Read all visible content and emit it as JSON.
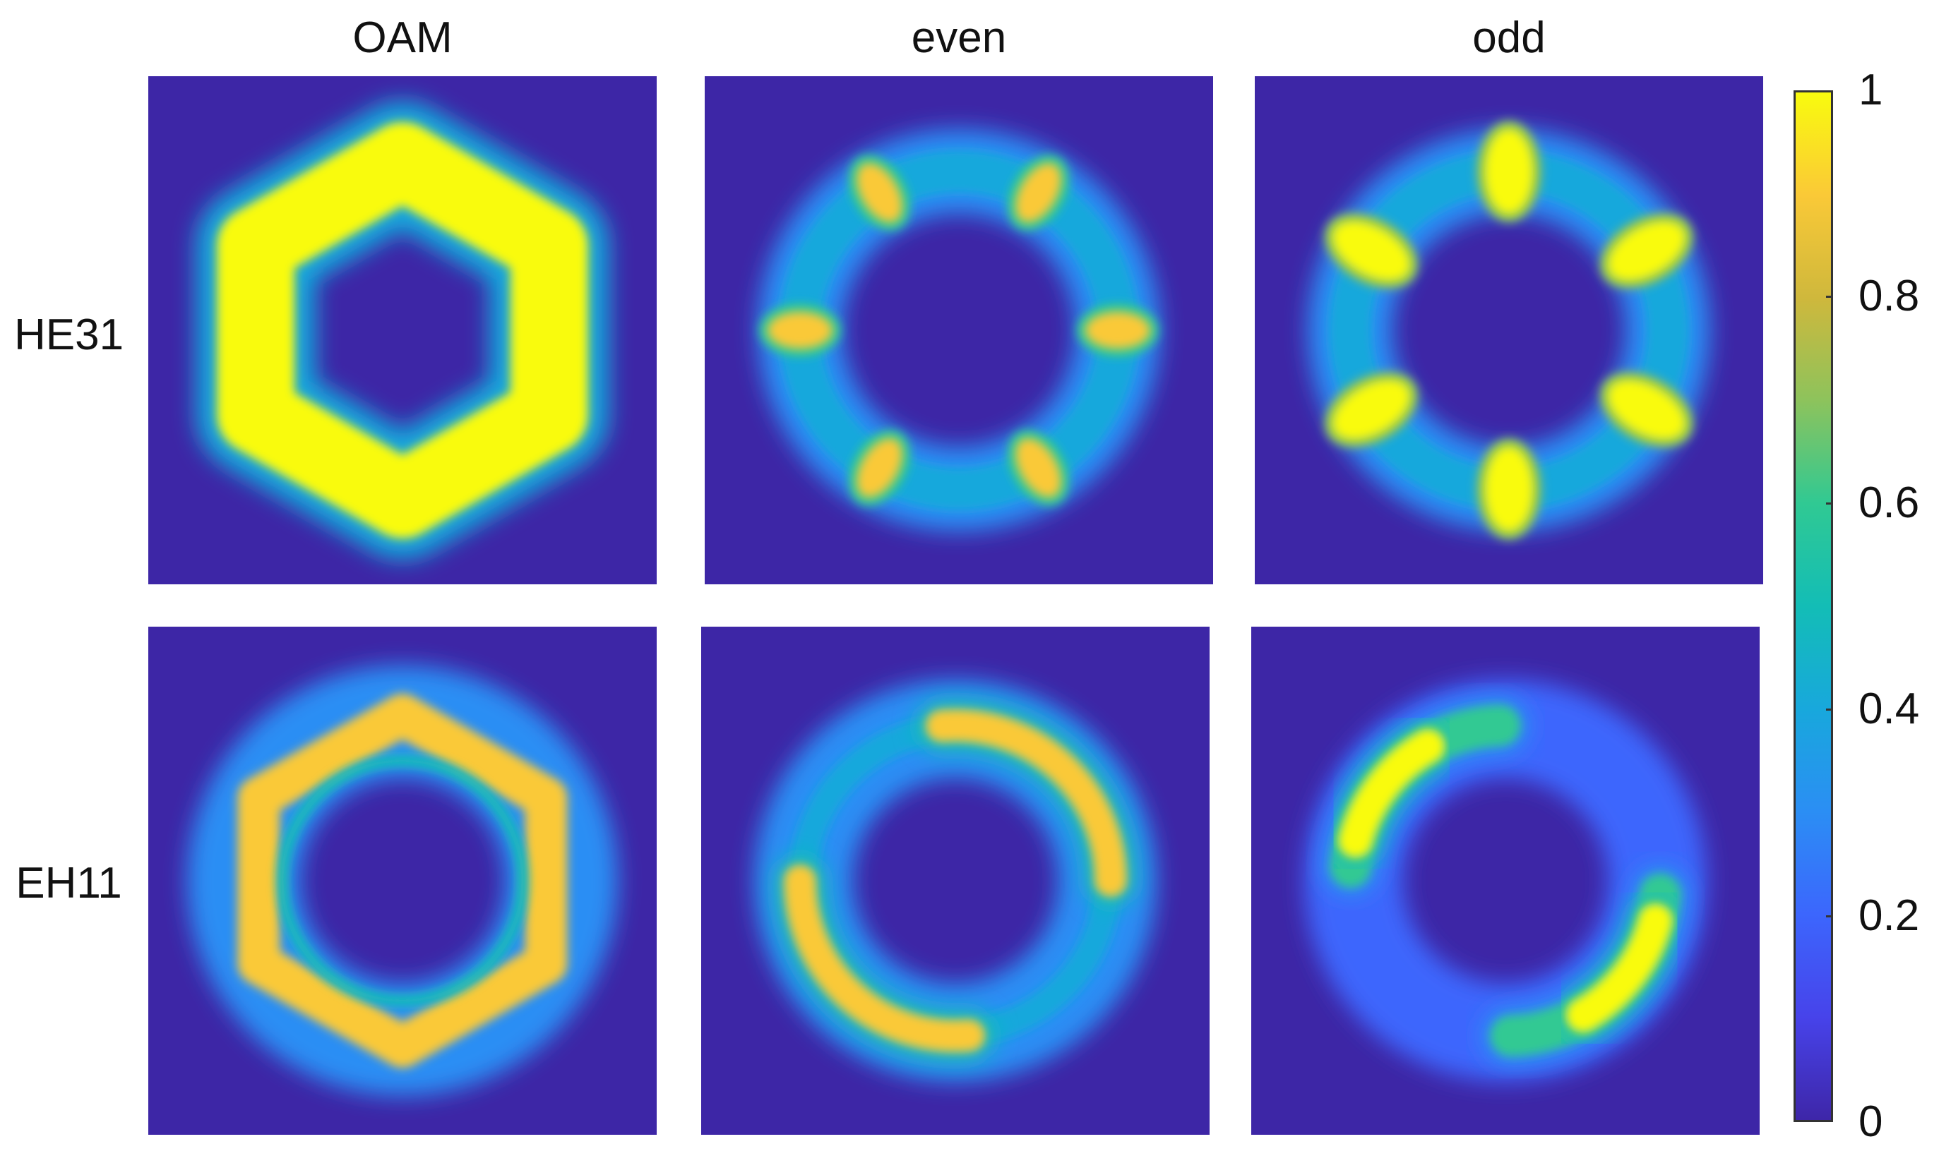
{
  "chart_data": {
    "type": "heatmap",
    "column_titles": [
      "OAM",
      "even",
      "odd"
    ],
    "row_labels": [
      "HE31",
      "EH11"
    ],
    "colorbar": {
      "min": 0,
      "max": 1,
      "ticks": [
        "0",
        "0.2",
        "0.4",
        "0.6",
        "0.8",
        "1"
      ],
      "colormap": "parula"
    },
    "panels": [
      {
        "row": "HE31",
        "column": "OAM",
        "pattern": "continuous hexagonal ring",
        "lobes": 0,
        "peak_intensity": 1.0
      },
      {
        "row": "HE31",
        "column": "even",
        "pattern": "ring with lobes",
        "lobes": 6,
        "peak_intensity": 0.85
      },
      {
        "row": "HE31",
        "column": "odd",
        "pattern": "ring with lobes",
        "lobes": 6,
        "peak_intensity": 1.0
      },
      {
        "row": "EH11",
        "column": "OAM",
        "pattern": "double ring (inner + outer)",
        "lobes": 0,
        "peak_intensity": 0.9
      },
      {
        "row": "EH11",
        "column": "even",
        "pattern": "two crescent arcs",
        "lobes": 2,
        "peak_intensity": 0.88
      },
      {
        "row": "EH11",
        "column": "odd",
        "pattern": "split crescent arcs",
        "lobes": 2,
        "peak_intensity": 0.95
      }
    ]
  }
}
